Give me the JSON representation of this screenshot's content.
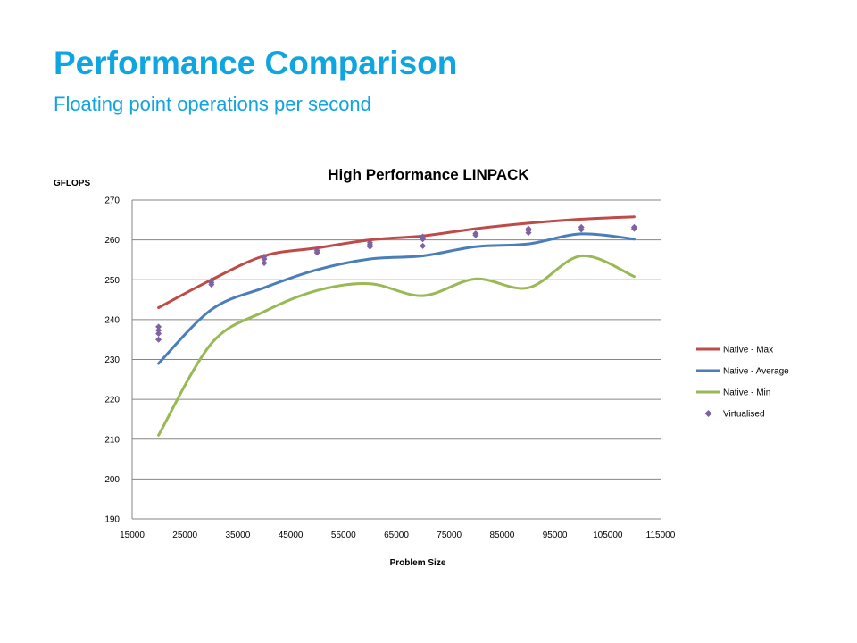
{
  "slide": {
    "title": "Performance Comparison",
    "subtitle": "Floating point operations per second"
  },
  "colors": {
    "title": "#0ea5e0",
    "native_max": "#be4b48",
    "native_average": "#4a7ebb",
    "native_min": "#98b954",
    "virtualised": "#7e62a1",
    "grid": "#868686"
  },
  "chart_data": {
    "type": "line",
    "title": "High Performance LINPACK",
    "xlabel": "Problem Size",
    "ylabel": "GFLOPS",
    "xlim": [
      15000,
      115000
    ],
    "ylim": [
      190,
      270
    ],
    "x_ticks": [
      15000,
      25000,
      35000,
      45000,
      55000,
      65000,
      75000,
      85000,
      95000,
      105000,
      115000
    ],
    "y_ticks": [
      190,
      200,
      210,
      220,
      230,
      240,
      250,
      260,
      270
    ],
    "grid": "horizontal",
    "legend_position": "right",
    "series": [
      {
        "name": "Native - Max",
        "type": "line",
        "color_key": "native_max",
        "x": [
          20000,
          30000,
          40000,
          50000,
          60000,
          70000,
          80000,
          90000,
          100000,
          110000
        ],
        "y": [
          243,
          250,
          256,
          258,
          260,
          261,
          262.8,
          264.2,
          265.2,
          265.8
        ]
      },
      {
        "name": "Native - Average",
        "type": "line",
        "color_key": "native_average",
        "x": [
          20000,
          30000,
          40000,
          50000,
          60000,
          70000,
          80000,
          90000,
          100000,
          110000
        ],
        "y": [
          229,
          242.5,
          248,
          252.5,
          255.2,
          256,
          258.3,
          259,
          261.5,
          260.2
        ]
      },
      {
        "name": "Native - Min",
        "type": "line",
        "color_key": "native_min",
        "x": [
          20000,
          30000,
          40000,
          50000,
          60000,
          70000,
          80000,
          90000,
          100000,
          110000
        ],
        "y": [
          211,
          234,
          242,
          247.3,
          249,
          246,
          250.2,
          248,
          256,
          250.8
        ]
      },
      {
        "name": "Virtualised",
        "type": "scatter",
        "color_key": "virtualised",
        "points": [
          [
            20000,
            235
          ],
          [
            20000,
            236.5
          ],
          [
            20000,
            237.3
          ],
          [
            20000,
            238.2
          ],
          [
            30000,
            248.8
          ],
          [
            30000,
            249.3
          ],
          [
            30000,
            249.8
          ],
          [
            40000,
            254.2
          ],
          [
            40000,
            255.2
          ],
          [
            40000,
            255.8
          ],
          [
            50000,
            256.8
          ],
          [
            50000,
            257.3
          ],
          [
            60000,
            258.3
          ],
          [
            60000,
            258.8
          ],
          [
            60000,
            259.3
          ],
          [
            70000,
            258.5
          ],
          [
            70000,
            260.2
          ],
          [
            70000,
            260.8
          ],
          [
            80000,
            261.2
          ],
          [
            80000,
            261.6
          ],
          [
            90000,
            261.8
          ],
          [
            90000,
            262.4
          ],
          [
            90000,
            262.8
          ],
          [
            100000,
            262.6
          ],
          [
            100000,
            263.2
          ],
          [
            110000,
            262.8
          ],
          [
            110000,
            263.2
          ]
        ]
      }
    ]
  }
}
